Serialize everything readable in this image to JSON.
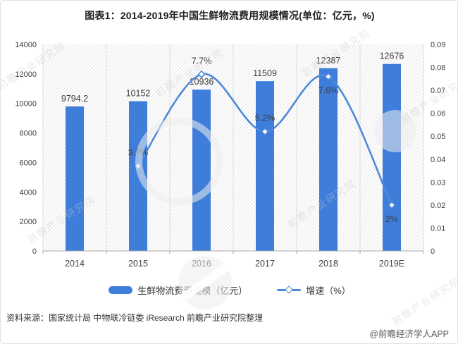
{
  "title": "图表1：2014-2019年中国生鲜物流费用规模情况(单位：亿元，%)",
  "watermark": {
    "text": "前瞻产业研究院"
  },
  "legend": {
    "bar_label": "生鲜物流费用规模（亿元）",
    "line_label": "增速（%）"
  },
  "footer": {
    "source": "资料来源：国家统计局 中物联冷链委 iResearch 前瞻产业研究院整理",
    "credit": "@前瞻经济学人APP"
  },
  "colors": {
    "bar": "#3e7eda",
    "line": "#4c89db",
    "marker_fill": "#ffffff",
    "grid": "#dcdcdc",
    "axis_line": "#a9a9a9",
    "axis_text": "#404040",
    "label_text": "#3f3f3f",
    "hatch": "#e6e6e6"
  },
  "chart_data": {
    "type": "bar+line combo",
    "categories": [
      "2014",
      "2015",
      "2016",
      "2017",
      "2018",
      "2019E"
    ],
    "series": [
      {
        "name": "生鲜物流费用规模（亿元）",
        "type": "bar",
        "axis": "left",
        "values": [
          9794.2,
          10152,
          10936,
          11509,
          12387,
          12676
        ],
        "labels": [
          "9794.2",
          "10152",
          "10936",
          "11509",
          "12387",
          "12676"
        ]
      },
      {
        "name": "增速（%）",
        "type": "line",
        "axis": "right",
        "values": [
          null,
          0.037,
          0.077,
          0.052,
          0.076,
          0.02
        ],
        "labels": [
          null,
          "3.7%",
          "7.7%",
          "5.2%",
          "7.6%",
          "2%"
        ],
        "label_side": [
          null,
          "above",
          "above",
          "above",
          "below",
          "below"
        ]
      }
    ],
    "left_axis": {
      "min": 0,
      "max": 14000,
      "step": 2000,
      "ticks": [
        "0",
        "2000",
        "4000",
        "6000",
        "8000",
        "10000",
        "12000",
        "14000"
      ]
    },
    "right_axis": {
      "min": 0,
      "max": 0.09,
      "step": 0.01,
      "ticks": [
        "0",
        "0.01",
        "0.02",
        "0.03",
        "0.04",
        "0.05",
        "0.06",
        "0.07",
        "0.08",
        "0.09"
      ]
    },
    "grid": "vertical-category-lines",
    "legend_position": "bottom",
    "plot_background": "diagonal-hatch"
  }
}
